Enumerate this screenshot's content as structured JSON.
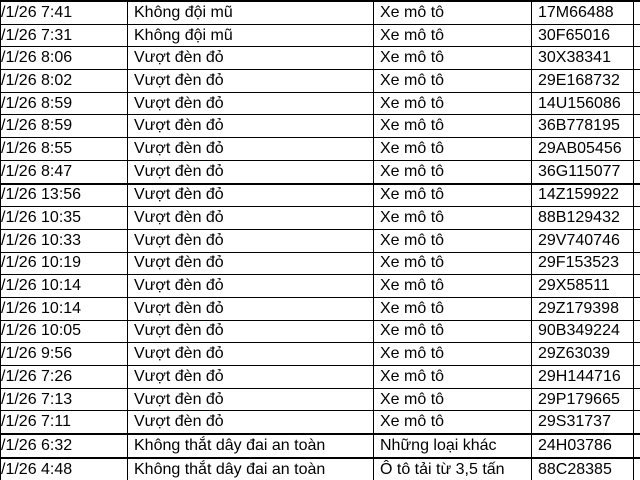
{
  "colors": {
    "background": "#ffffff",
    "text": "#000000",
    "grid_border": "#000000"
  },
  "table": {
    "columns": [
      {
        "key": "datetime"
      },
      {
        "key": "violation"
      },
      {
        "key": "vehicle"
      },
      {
        "key": "plate"
      }
    ],
    "rows": [
      {
        "datetime": "/1/26 7:41",
        "violation": "Không đội mũ",
        "vehicle": "Xe mô tô",
        "plate": "17M66488",
        "group_end": false
      },
      {
        "datetime": "/1/26 7:31",
        "violation": "Không đội mũ",
        "vehicle": "Xe mô tô",
        "plate": "30F65016",
        "group_end": false
      },
      {
        "datetime": "/1/26 8:06",
        "violation": "Vượt đèn đỏ",
        "vehicle": "Xe mô tô",
        "plate": "30X38341",
        "group_end": false
      },
      {
        "datetime": "/1/26 8:02",
        "violation": "Vượt đèn đỏ",
        "vehicle": "Xe mô tô",
        "plate": "29E168732",
        "group_end": false
      },
      {
        "datetime": "/1/26 8:59",
        "violation": "Vượt đèn đỏ",
        "vehicle": "Xe mô tô",
        "plate": "14U156086",
        "group_end": false
      },
      {
        "datetime": "/1/26 8:59",
        "violation": "Vượt đèn đỏ",
        "vehicle": "Xe mô tô",
        "plate": "36B778195",
        "group_end": false
      },
      {
        "datetime": "/1/26 8:55",
        "violation": "Vượt đèn đỏ",
        "vehicle": "Xe mô tô",
        "plate": "29AB05456",
        "group_end": false
      },
      {
        "datetime": "/1/26 8:47",
        "violation": "Vượt đèn đỏ",
        "vehicle": "Xe mô tô",
        "plate": "36G115077",
        "group_end": true
      },
      {
        "datetime": "/1/26 13:56",
        "violation": "Vượt đèn đỏ",
        "vehicle": "Xe mô tô",
        "plate": "14Z159922",
        "group_end": false
      },
      {
        "datetime": "/1/26 10:35",
        "violation": "Vượt đèn đỏ",
        "vehicle": "Xe mô tô",
        "plate": "88B129432",
        "group_end": false
      },
      {
        "datetime": "/1/26 10:33",
        "violation": "Vượt đèn đỏ",
        "vehicle": "Xe mô tô",
        "plate": "29V740746",
        "group_end": false
      },
      {
        "datetime": "/1/26 10:19",
        "violation": "Vượt đèn đỏ",
        "vehicle": "Xe mô tô",
        "plate": "29F153523",
        "group_end": false
      },
      {
        "datetime": "/1/26 10:14",
        "violation": "Vượt đèn đỏ",
        "vehicle": "Xe mô tô",
        "plate": "29X58511",
        "group_end": false
      },
      {
        "datetime": "/1/26 10:14",
        "violation": "Vượt đèn đỏ",
        "vehicle": "Xe mô tô",
        "plate": "29Z179398",
        "group_end": false
      },
      {
        "datetime": "/1/26 10:05",
        "violation": "Vượt đèn đỏ",
        "vehicle": "Xe mô tô",
        "plate": "90B349224",
        "group_end": false
      },
      {
        "datetime": "/1/26 9:56",
        "violation": "Vượt đèn đỏ",
        "vehicle": "Xe mô tô",
        "plate": "29Z63039",
        "group_end": false
      },
      {
        "datetime": "/1/26 7:26",
        "violation": "Vượt đèn đỏ",
        "vehicle": "Xe mô tô",
        "plate": "29H144716",
        "group_end": false
      },
      {
        "datetime": "/1/26 7:13",
        "violation": "Vượt đèn đỏ",
        "vehicle": "Xe mô tô",
        "plate": "29P179665",
        "group_end": false
      },
      {
        "datetime": "/1/26 7:11",
        "violation": "Vượt đèn đỏ",
        "vehicle": "Xe mô tô",
        "plate": "29S31737",
        "group_end": true
      },
      {
        "datetime": "/1/26 6:32",
        "violation": "Không thắt dây đai an toàn",
        "vehicle": "Những loại khác",
        "plate": "24H03786",
        "group_end": true
      },
      {
        "datetime": "/1/26 4:48",
        "violation": "Không thắt dây đai an toàn",
        "vehicle": "Ô tô tải từ 3,5 tấn",
        "plate": "88C28385",
        "group_end": true
      }
    ]
  }
}
